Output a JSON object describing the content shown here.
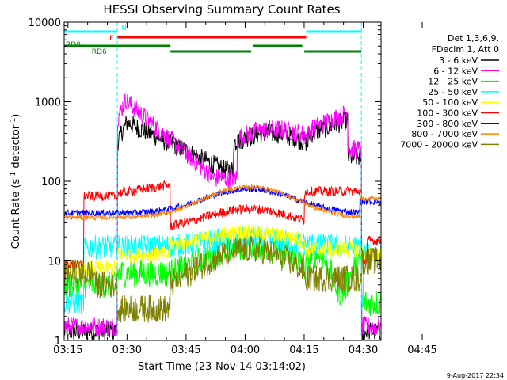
{
  "chart_data": {
    "type": "line",
    "title": "HESSI Observing Summary Count Rates",
    "xlabel": "Start Time (23-Nov-14 03:14:02)",
    "ylabel_main": "Count Rate (s",
    "ylabel_sup1": "-1",
    "ylabel_mid": " detector",
    "ylabel_sup2": "-1",
    "ylabel_end": ")",
    "yscale": "log",
    "ylim": [
      1,
      10000
    ],
    "xlim_minutes": [
      0,
      80.5
    ],
    "x_ticks": [
      {
        "label": "03:15",
        "min": 0.97
      },
      {
        "label": "03:30",
        "min": 15.97
      },
      {
        "label": "03:45",
        "min": 30.97
      },
      {
        "label": "04:00",
        "min": 45.97
      },
      {
        "label": "04:15",
        "min": 60.97
      },
      {
        "label": "04:30",
        "min": 75.97
      },
      {
        "label": "04:45",
        "min": 90.97
      }
    ],
    "y_ticks": [
      {
        "label": "1",
        "value": 1
      },
      {
        "label": "10",
        "value": 10
      },
      {
        "label": "100",
        "value": 100
      },
      {
        "label": "1000",
        "value": 1000
      },
      {
        "label": "10000",
        "value": 10000
      }
    ],
    "legend": {
      "header": [
        "Det 1,3,6,9,",
        "FDecim 1, Att 0"
      ],
      "placement": "right"
    },
    "series": [
      {
        "name": "3 - 6 keV",
        "color": "#000000"
      },
      {
        "name": "6 - 12 keV",
        "color": "#ff00ff"
      },
      {
        "name": "12 - 25 keV",
        "color": "#00ff00"
      },
      {
        "name": "25 - 50 keV",
        "color": "#00ffff"
      },
      {
        "name": "50 - 100 keV",
        "color": "#ffff00"
      },
      {
        "name": "100 - 300 keV",
        "color": "#ff0000"
      },
      {
        "name": "300 - 800 keV",
        "color": "#0000ff"
      },
      {
        "name": "800 - 7000 keV",
        "color": "#ff8000"
      },
      {
        "name": "7000 - 20000 keV",
        "color": "#808000"
      }
    ],
    "flag_bars": [
      {
        "label": "N",
        "label_color": "#00ffff",
        "color": "#00ffff",
        "segments": [
          [
            0,
            13.5
          ],
          [
            61.5,
            75.5
          ]
        ]
      },
      {
        "label": "F",
        "label_color": "#ff0000",
        "color": "#ff0000",
        "segments": [
          [
            13.5,
            61.5
          ]
        ]
      },
      {
        "label": "RD0",
        "label_color": "#008000",
        "color": "#008000",
        "segments": [
          [
            0,
            27
          ],
          [
            48,
            60.5
          ]
        ]
      },
      {
        "label": "RD6",
        "label_color": "#008000",
        "color": "#008000",
        "segments": [
          [
            27,
            47.5
          ],
          [
            61,
            75.5
          ]
        ]
      }
    ],
    "saa_dashed_min": [
      13.5,
      75.5
    ],
    "footer_date": "9-Aug-2017 22:34"
  }
}
